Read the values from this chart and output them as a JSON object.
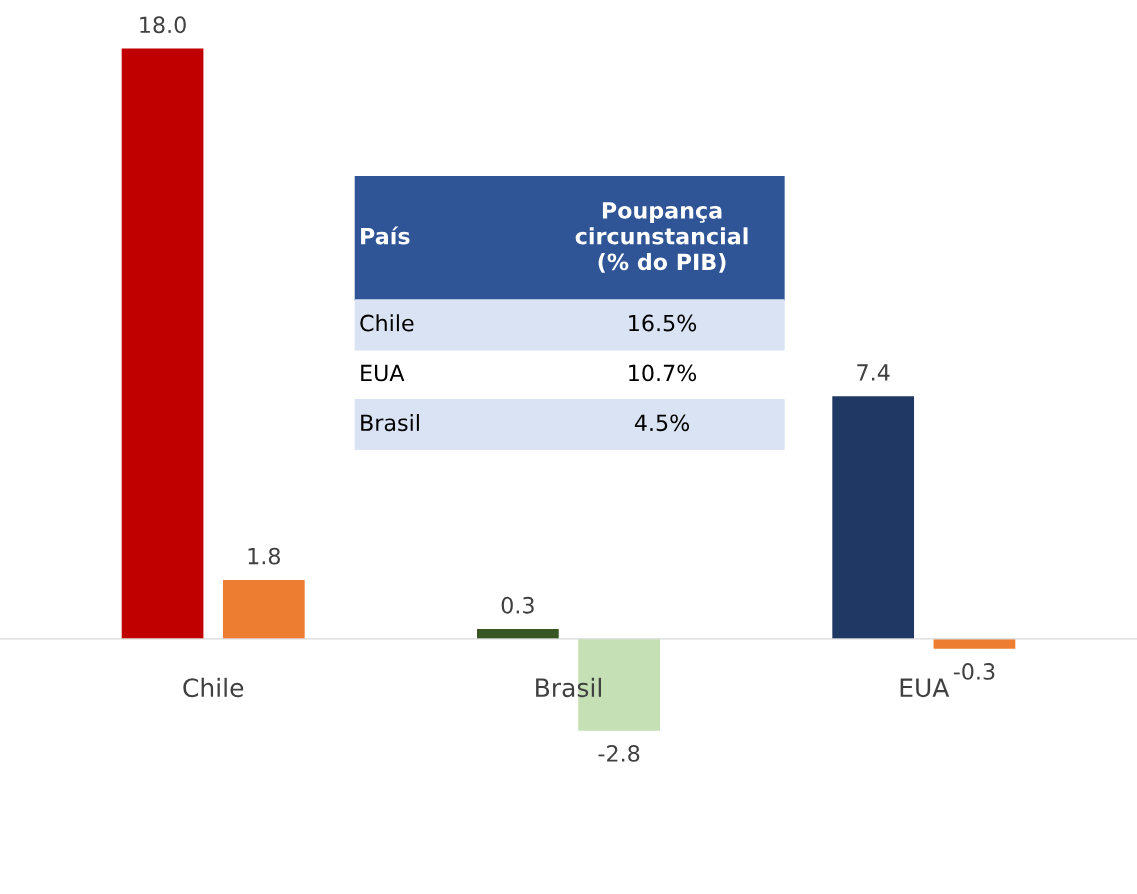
{
  "chart_data": [
    {
      "type": "bar",
      "categories": [
        "Chile",
        "Brasil",
        "EUA"
      ],
      "series": [
        {
          "colors": [
            "#c00000",
            "#375623",
            "#1f3864"
          ],
          "values": [
            18.0,
            0.3,
            7.4
          ],
          "value_labels": [
            "18.0",
            "0.3",
            "7.4"
          ]
        },
        {
          "colors": [
            "#ed7d31",
            "#c5e0b4",
            "#ed7d31"
          ],
          "values": [
            1.8,
            -2.8,
            -0.3
          ],
          "value_labels": [
            "1.8",
            "-2.8",
            "-0.3"
          ]
        }
      ],
      "grid": false,
      "legend": false
    },
    {
      "type": "other",
      "xlabel": "País",
      "ylabel": "Poupança\ncircunstancial\n(% do PIB)",
      "categories": [
        "Chile",
        "EUA",
        "Brasil"
      ],
      "value_labels": [
        "16.5%",
        "10.7%",
        "4.5%"
      ]
    }
  ]
}
